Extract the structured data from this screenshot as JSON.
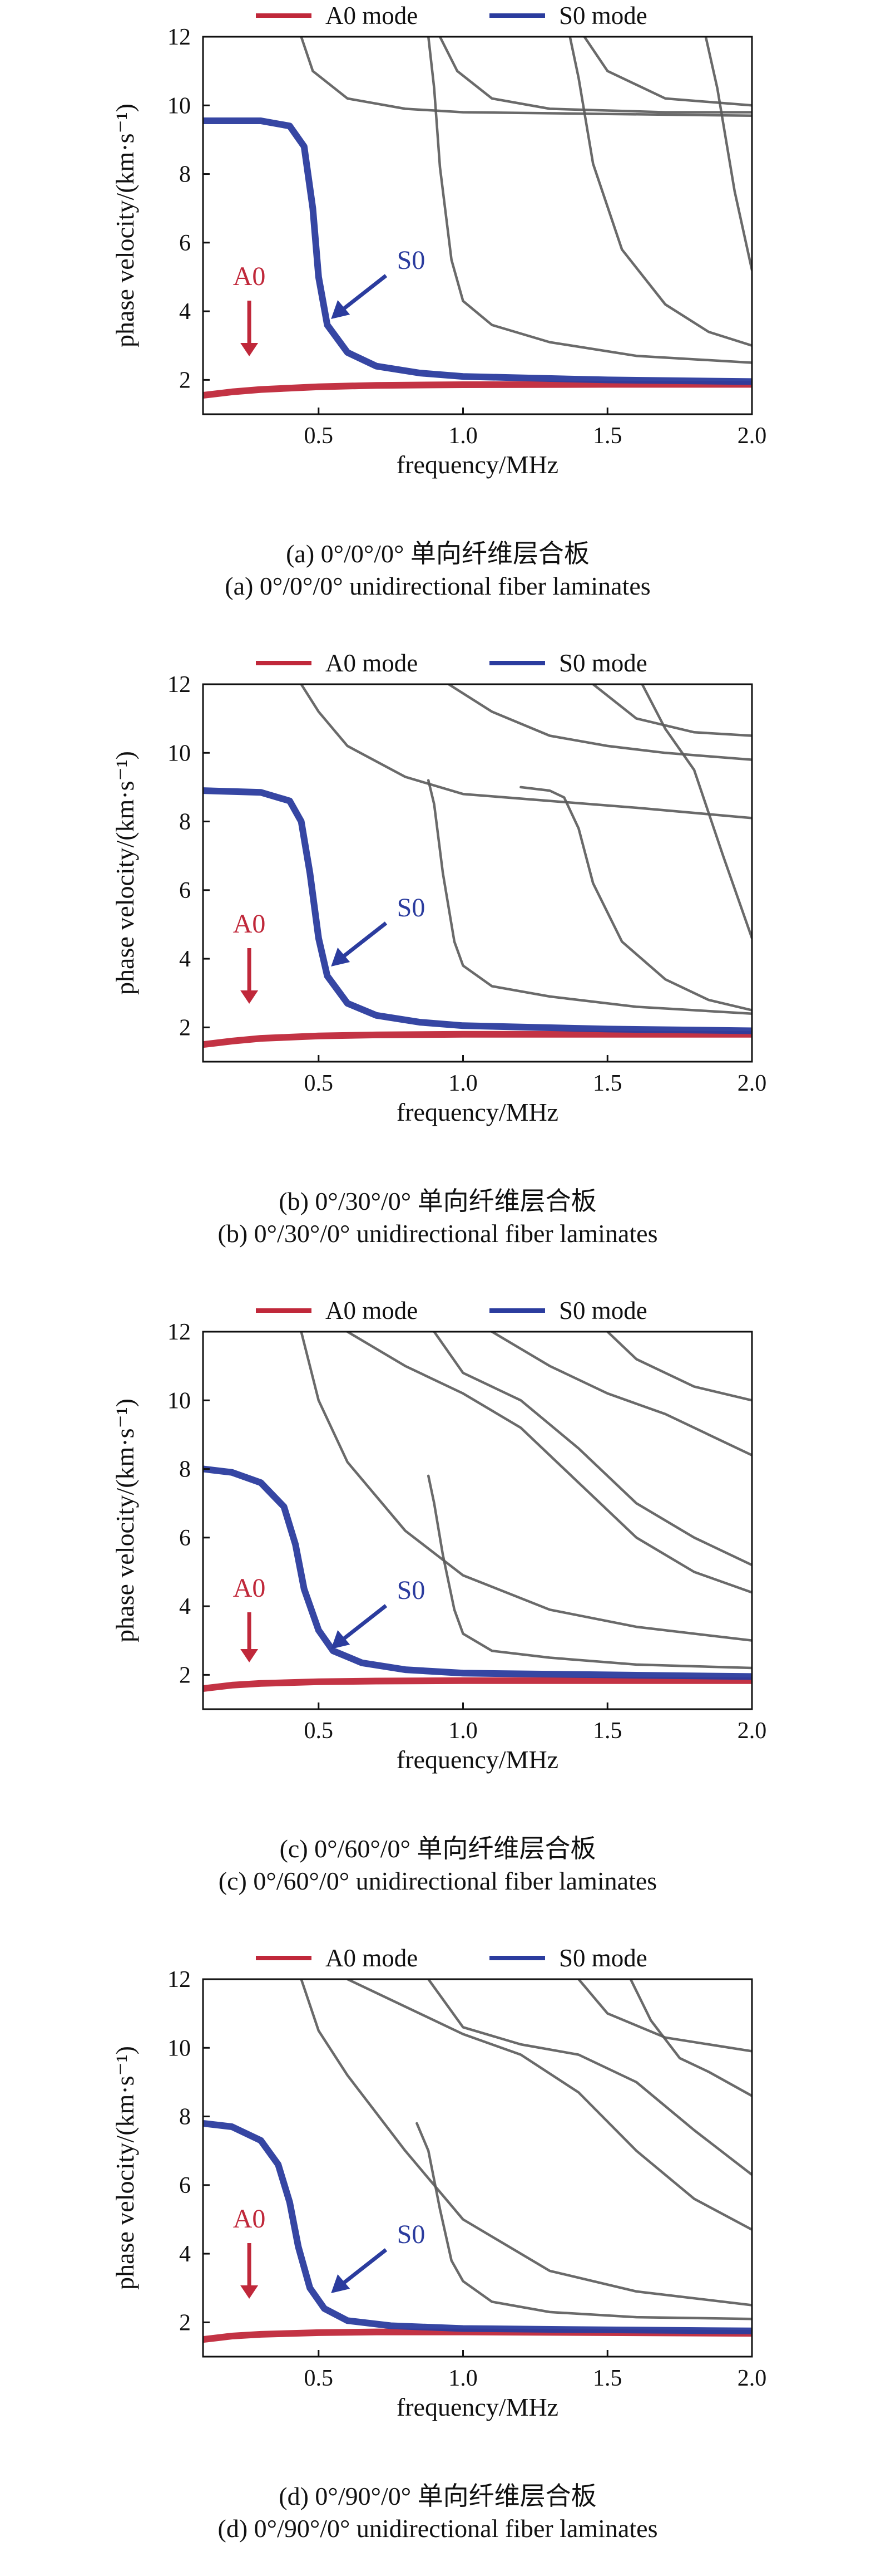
{
  "colors": {
    "a0": "#c0283a",
    "s0": "#2b3c9e",
    "guided": "#5a5a5a",
    "axis": "#111111"
  },
  "chart_data": [
    {
      "type": "line",
      "title": "",
      "xlabel": "frequency/MHz",
      "ylabel": "phase velocity/(km·s⁻¹)",
      "xlim": [
        0.1,
        2.0
      ],
      "ylim": [
        1,
        12
      ],
      "xticks": [
        "0.5",
        "1.0",
        "1.5",
        "2.0"
      ],
      "yticks": [
        "2",
        "4",
        "6",
        "8",
        "10",
        "12"
      ],
      "legend": [
        "A0 mode",
        "S0 mode"
      ],
      "caption_cn": "(a) 0°/0°/0° 单向纤维层合板",
      "caption_en": "(a) 0°/0°/0° unidirectional fiber laminates",
      "annotations": {
        "a0": "A0",
        "s0": "S0"
      },
      "series": [
        {
          "name": "A0 mode",
          "x": [
            0.1,
            0.2,
            0.3,
            0.5,
            0.7,
            1.0,
            1.5,
            2.0
          ],
          "y": [
            1.55,
            1.65,
            1.72,
            1.8,
            1.84,
            1.86,
            1.87,
            1.87
          ]
        },
        {
          "name": "S0 mode",
          "x": [
            0.1,
            0.3,
            0.4,
            0.45,
            0.48,
            0.5,
            0.53,
            0.6,
            0.7,
            0.85,
            1.0,
            1.5,
            2.0
          ],
          "y": [
            9.55,
            9.55,
            9.4,
            8.8,
            7.0,
            5.0,
            3.6,
            2.8,
            2.4,
            2.2,
            2.1,
            2.0,
            1.95
          ]
        },
        {
          "name": "mode 3",
          "x": [
            0.44,
            0.48,
            0.6,
            0.8,
            1.0,
            1.5,
            2.0
          ],
          "y": [
            12,
            11.0,
            10.2,
            9.9,
            9.8,
            9.75,
            9.7
          ]
        },
        {
          "name": "mode 4",
          "x": [
            0.88,
            0.9,
            0.92,
            0.96,
            1.0,
            1.1,
            1.3,
            1.6,
            2.0
          ],
          "y": [
            12,
            10.5,
            8.2,
            5.5,
            4.3,
            3.6,
            3.1,
            2.7,
            2.5
          ]
        },
        {
          "name": "mode 5",
          "x": [
            0.92,
            0.98,
            1.1,
            1.3,
            1.5,
            1.7,
            2.0
          ],
          "y": [
            12,
            11.0,
            10.2,
            9.9,
            9.85,
            9.8,
            9.8
          ]
        },
        {
          "name": "mode 6",
          "x": [
            1.37,
            1.4,
            1.45,
            1.55,
            1.7,
            1.85,
            2.0
          ],
          "y": [
            12,
            10.8,
            8.3,
            5.8,
            4.2,
            3.4,
            3.0
          ]
        },
        {
          "name": "mode 7",
          "x": [
            1.42,
            1.5,
            1.7,
            2.0
          ],
          "y": [
            12,
            11.0,
            10.2,
            10.0
          ]
        },
        {
          "name": "mode 8",
          "x": [
            1.84,
            1.88,
            1.94,
            2.0
          ],
          "y": [
            12,
            10.5,
            7.5,
            5.2
          ]
        }
      ]
    },
    {
      "type": "line",
      "title": "",
      "xlabel": "frequency/MHz",
      "ylabel": "phase velocity/(km·s⁻¹)",
      "xlim": [
        0.1,
        2.0
      ],
      "ylim": [
        1,
        12
      ],
      "xticks": [
        "0.5",
        "1.0",
        "1.5",
        "2.0"
      ],
      "yticks": [
        "2",
        "4",
        "6",
        "8",
        "10",
        "12"
      ],
      "legend": [
        "A0 mode",
        "S0 mode"
      ],
      "caption_cn": "(b) 0°/30°/0° 单向纤维层合板",
      "caption_en": "(b) 0°/30°/0° unidirectional fiber laminates",
      "annotations": {
        "a0": "A0",
        "s0": "S0"
      },
      "series": [
        {
          "name": "A0 mode",
          "x": [
            0.1,
            0.2,
            0.3,
            0.5,
            0.7,
            1.0,
            1.5,
            2.0
          ],
          "y": [
            1.5,
            1.6,
            1.68,
            1.75,
            1.78,
            1.8,
            1.8,
            1.8
          ]
        },
        {
          "name": "S0 mode",
          "x": [
            0.1,
            0.3,
            0.4,
            0.44,
            0.47,
            0.5,
            0.53,
            0.6,
            0.7,
            0.85,
            1.0,
            1.5,
            2.0
          ],
          "y": [
            8.9,
            8.85,
            8.6,
            8.0,
            6.5,
            4.6,
            3.5,
            2.7,
            2.35,
            2.15,
            2.05,
            1.95,
            1.9
          ]
        },
        {
          "name": "mode 3",
          "x": [
            0.44,
            0.5,
            0.6,
            0.8,
            1.0,
            1.3,
            1.6,
            2.0
          ],
          "y": [
            12,
            11.2,
            10.2,
            9.3,
            8.8,
            8.6,
            8.4,
            8.1
          ]
        },
        {
          "name": "mode 4",
          "x": [
            0.88,
            0.9,
            0.93,
            0.97,
            1.0,
            1.1,
            1.3,
            1.6,
            2.0
          ],
          "y": [
            9.2,
            8.5,
            6.5,
            4.5,
            3.8,
            3.2,
            2.9,
            2.6,
            2.4
          ]
        },
        {
          "name": "mode 5",
          "x": [
            0.95,
            1.1,
            1.3,
            1.5,
            1.7,
            2.0
          ],
          "y": [
            12,
            11.2,
            10.5,
            10.2,
            10.0,
            9.8
          ]
        },
        {
          "name": "mode 6",
          "x": [
            1.2,
            1.3,
            1.35,
            1.4,
            1.45,
            1.55,
            1.7,
            1.85,
            2.0
          ],
          "y": [
            9.0,
            8.9,
            8.7,
            7.8,
            6.2,
            4.5,
            3.4,
            2.8,
            2.5
          ]
        },
        {
          "name": "mode 7",
          "x": [
            1.45,
            1.6,
            1.8,
            2.0
          ],
          "y": [
            12,
            11.0,
            10.6,
            10.5
          ]
        },
        {
          "name": "mode 8",
          "x": [
            1.62,
            1.7,
            1.8,
            1.9,
            2.0
          ],
          "y": [
            12,
            10.7,
            9.5,
            7.0,
            4.6
          ]
        }
      ]
    },
    {
      "type": "line",
      "title": "",
      "xlabel": "frequency/MHz",
      "ylabel": "phase velocity/(km·s⁻¹)",
      "xlim": [
        0.1,
        2.0
      ],
      "ylim": [
        1,
        12
      ],
      "xticks": [
        "0.5",
        "1.0",
        "1.5",
        "2.0"
      ],
      "yticks": [
        "2",
        "4",
        "6",
        "8",
        "10",
        "12"
      ],
      "legend": [
        "A0 mode",
        "S0 mode"
      ],
      "caption_cn": "(c) 0°/60°/0° 单向纤维层合板",
      "caption_en": "(c) 0°/60°/0° unidirectional fiber laminates",
      "annotations": {
        "a0": "A0",
        "s0": "S0"
      },
      "series": [
        {
          "name": "A0 mode",
          "x": [
            0.1,
            0.2,
            0.3,
            0.5,
            0.7,
            1.0,
            1.5,
            2.0
          ],
          "y": [
            1.6,
            1.7,
            1.75,
            1.8,
            1.82,
            1.83,
            1.83,
            1.83
          ]
        },
        {
          "name": "S0 mode",
          "x": [
            0.1,
            0.2,
            0.3,
            0.38,
            0.42,
            0.45,
            0.5,
            0.55,
            0.65,
            0.8,
            1.0,
            1.5,
            2.0
          ],
          "y": [
            8.0,
            7.9,
            7.6,
            6.9,
            5.8,
            4.5,
            3.3,
            2.7,
            2.35,
            2.15,
            2.05,
            2.0,
            1.95
          ]
        },
        {
          "name": "mode 3",
          "x": [
            0.44,
            0.5,
            0.6,
            0.8,
            1.0,
            1.3,
            1.6,
            2.0
          ],
          "y": [
            12,
            10.0,
            8.2,
            6.2,
            4.9,
            3.9,
            3.4,
            3.0
          ]
        },
        {
          "name": "mode 4",
          "x": [
            0.88,
            0.9,
            0.93,
            0.97,
            1.0,
            1.1,
            1.3,
            1.6,
            2.0
          ],
          "y": [
            7.8,
            7.0,
            5.5,
            3.9,
            3.2,
            2.7,
            2.5,
            2.3,
            2.2
          ]
        },
        {
          "name": "mode 5",
          "x": [
            0.6,
            0.8,
            1.0,
            1.2,
            1.4,
            1.6,
            1.8,
            2.0
          ],
          "y": [
            12,
            11.0,
            10.2,
            9.2,
            7.6,
            6.0,
            5.0,
            4.4
          ]
        },
        {
          "name": "mode 6",
          "x": [
            0.9,
            1.0,
            1.2,
            1.4,
            1.6,
            1.8,
            2.0
          ],
          "y": [
            12,
            10.8,
            10.0,
            8.6,
            7.0,
            6.0,
            5.2
          ]
        },
        {
          "name": "mode 7",
          "x": [
            1.1,
            1.3,
            1.5,
            1.7,
            2.0
          ],
          "y": [
            12,
            11.0,
            10.2,
            9.6,
            8.4
          ]
        },
        {
          "name": "mode 8",
          "x": [
            1.5,
            1.6,
            1.8,
            2.0
          ],
          "y": [
            12,
            11.2,
            10.4,
            10.0
          ]
        }
      ]
    },
    {
      "type": "line",
      "title": "",
      "xlabel": "frequency/MHz",
      "ylabel": "phase velocity/(km·s⁻¹)",
      "xlim": [
        0.1,
        2.0
      ],
      "ylim": [
        1,
        12
      ],
      "xticks": [
        "0.5",
        "1.0",
        "1.5",
        "2.0"
      ],
      "yticks": [
        "2",
        "4",
        "6",
        "8",
        "10",
        "12"
      ],
      "legend": [
        "A0 mode",
        "S0 mode"
      ],
      "caption_cn": "(d) 0°/90°/0° 单向纤维层合板",
      "caption_en": "(d) 0°/90°/0° unidirectional fiber laminates",
      "annotations": {
        "a0": "A0",
        "s0": "S0"
      },
      "series": [
        {
          "name": "A0 mode",
          "x": [
            0.1,
            0.2,
            0.3,
            0.5,
            0.7,
            1.0,
            1.5,
            2.0
          ],
          "y": [
            1.5,
            1.6,
            1.65,
            1.7,
            1.72,
            1.72,
            1.7,
            1.68
          ]
        },
        {
          "name": "S0 mode",
          "x": [
            0.1,
            0.2,
            0.3,
            0.36,
            0.4,
            0.43,
            0.47,
            0.52,
            0.6,
            0.75,
            1.0,
            1.5,
            2.0
          ],
          "y": [
            7.8,
            7.7,
            7.3,
            6.6,
            5.5,
            4.2,
            3.0,
            2.4,
            2.05,
            1.9,
            1.82,
            1.78,
            1.75
          ]
        },
        {
          "name": "mode 3",
          "x": [
            0.44,
            0.5,
            0.6,
            0.8,
            1.0,
            1.3,
            1.6,
            2.0
          ],
          "y": [
            12,
            10.5,
            9.2,
            7.0,
            5.0,
            3.5,
            2.9,
            2.5
          ]
        },
        {
          "name": "mode 4",
          "x": [
            0.84,
            0.88,
            0.92,
            0.96,
            1.0,
            1.1,
            1.3,
            1.6,
            2.0
          ],
          "y": [
            7.8,
            7.0,
            5.3,
            3.8,
            3.2,
            2.6,
            2.3,
            2.15,
            2.1
          ]
        },
        {
          "name": "mode 5",
          "x": [
            0.6,
            0.8,
            1.0,
            1.2,
            1.4,
            1.6,
            1.8,
            2.0
          ],
          "y": [
            12,
            11.2,
            10.4,
            9.8,
            8.7,
            7.0,
            5.6,
            4.7
          ]
        },
        {
          "name": "mode 6",
          "x": [
            0.88,
            1.0,
            1.2,
            1.4,
            1.6,
            1.8,
            2.0
          ],
          "y": [
            12,
            10.6,
            10.1,
            9.8,
            9.0,
            7.6,
            6.3
          ]
        },
        {
          "name": "mode 7",
          "x": [
            1.4,
            1.5,
            1.7,
            2.0
          ],
          "y": [
            12,
            11.0,
            10.3,
            9.9
          ]
        },
        {
          "name": "mode 8",
          "x": [
            1.58,
            1.65,
            1.75,
            1.85,
            2.0
          ],
          "y": [
            12,
            10.8,
            9.7,
            9.3,
            8.6
          ]
        }
      ]
    }
  ]
}
